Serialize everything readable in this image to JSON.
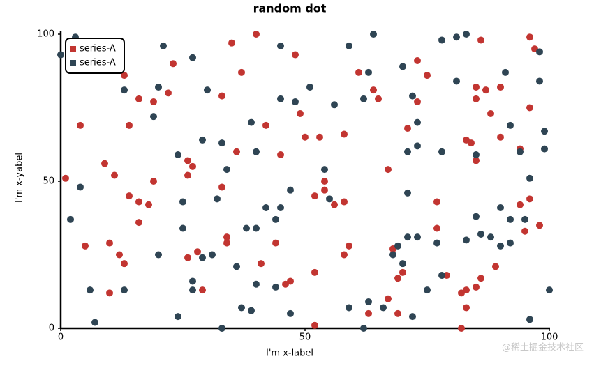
{
  "chart_data": {
    "type": "scatter",
    "title": "random dot",
    "x_label": "I'm x-label",
    "y_label": "I'm x-yabel",
    "xlim": [
      0,
      100
    ],
    "ylim": [
      0,
      100
    ],
    "xticks": [
      0,
      50,
      100
    ],
    "yticks": [
      0,
      50,
      100
    ],
    "legend_loc": "upper left",
    "series": [
      {
        "name": "series-A",
        "color": "#c23531",
        "x": [
          1,
          4,
          5,
          9,
          10,
          10,
          11,
          12,
          13,
          13,
          14,
          14,
          16,
          16,
          16,
          18,
          19,
          19,
          22,
          23,
          26,
          26,
          27,
          26,
          28,
          29,
          33,
          33,
          34,
          34,
          35,
          36,
          37,
          40,
          41,
          42,
          44,
          45,
          46,
          47,
          48,
          49,
          50,
          52,
          53,
          54,
          54,
          52,
          52,
          56,
          58,
          58,
          59,
          58,
          61,
          63,
          64,
          65,
          67,
          67,
          68,
          69,
          70,
          69,
          71,
          73,
          73,
          75,
          77,
          77,
          79,
          82,
          83,
          82,
          83,
          84,
          83,
          85,
          85,
          85,
          86,
          86,
          85,
          87,
          88,
          89,
          90,
          90,
          94,
          94,
          95,
          96,
          97,
          96,
          96,
          98
        ],
        "values": [
          51,
          69,
          28,
          56,
          12,
          29,
          52,
          25,
          86,
          22,
          45,
          69,
          78,
          43,
          36,
          42,
          77,
          50,
          80,
          90,
          57,
          52,
          55,
          24,
          26,
          13,
          79,
          48,
          31,
          29,
          97,
          60,
          87,
          100,
          22,
          69,
          29,
          59,
          15,
          16,
          93,
          73,
          65,
          45,
          65,
          50,
          47,
          19,
          1,
          42,
          66,
          43,
          28,
          25,
          87,
          5,
          81,
          78,
          54,
          10,
          27,
          17,
          19,
          5,
          68,
          91,
          77,
          86,
          43,
          34,
          18,
          0,
          13,
          12,
          64,
          63,
          7,
          57,
          82,
          78,
          98,
          17,
          14,
          81,
          73,
          21,
          82,
          65,
          42,
          61,
          33,
          99,
          95,
          75,
          44,
          35
        ]
      },
      {
        "name": "series-A",
        "color": "#2f4554",
        "x": [
          0,
          3,
          2,
          4,
          6,
          7,
          13,
          13,
          19,
          20,
          20,
          21,
          24,
          24,
          25,
          25,
          27,
          27,
          27,
          29,
          29,
          30,
          31,
          32,
          33,
          34,
          33,
          36,
          37,
          38,
          39,
          39,
          40,
          40,
          40,
          42,
          44,
          44,
          45,
          45,
          45,
          47,
          47,
          48,
          51,
          54,
          55,
          56,
          59,
          59,
          62,
          63,
          62,
          63,
          64,
          66,
          68,
          69,
          70,
          70,
          71,
          71,
          71,
          72,
          72,
          73,
          73,
          73,
          75,
          77,
          78,
          78,
          78,
          81,
          81,
          83,
          83,
          85,
          85,
          86,
          88,
          90,
          90,
          91,
          92,
          92,
          92,
          94,
          95,
          96,
          96,
          98,
          98,
          99,
          99,
          100
        ],
        "values": [
          93,
          99,
          37,
          48,
          13,
          2,
          81,
          13,
          72,
          82,
          25,
          96,
          59,
          4,
          43,
          34,
          92,
          16,
          13,
          64,
          24,
          81,
          25,
          44,
          63,
          54,
          0,
          21,
          7,
          34,
          70,
          6,
          60,
          34,
          15,
          41,
          37,
          14,
          41,
          96,
          78,
          47,
          5,
          77,
          82,
          54,
          44,
          76,
          96,
          7,
          0,
          87,
          78,
          9,
          100,
          7,
          25,
          28,
          22,
          89,
          46,
          60,
          31,
          79,
          4,
          62,
          70,
          31,
          13,
          29,
          98,
          60,
          18,
          84,
          99,
          100,
          30,
          59,
          38,
          32,
          31,
          41,
          28,
          87,
          69,
          29,
          37,
          60,
          37,
          51,
          3,
          94,
          84,
          67,
          61,
          13
        ]
      }
    ]
  },
  "watermark": "@稀土掘金技术社区"
}
